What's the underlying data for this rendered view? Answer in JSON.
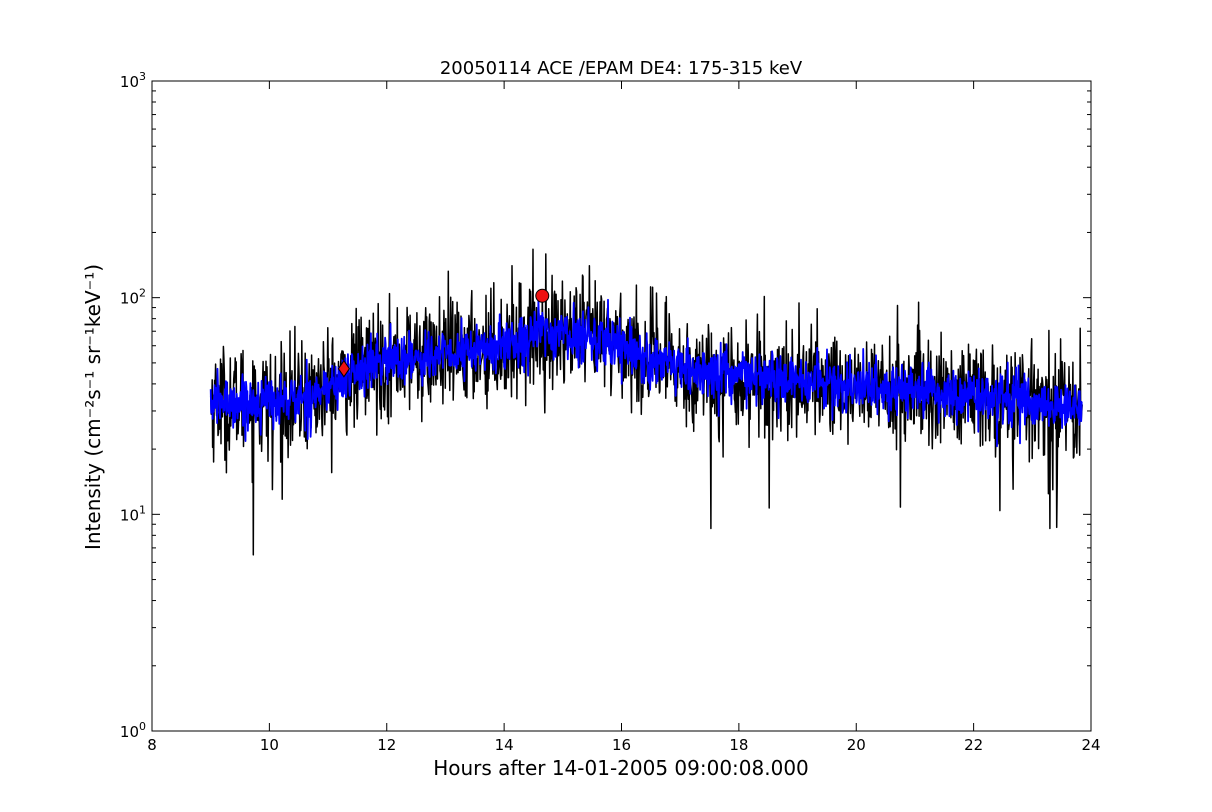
{
  "chart_data": {
    "type": "line",
    "title": "20050114 ACE /EPAM DE4: 175-315 keV",
    "xlabel": "Hours after 14-01-2005 09:00:08.000",
    "ylabel": "Intensity (cm⁻²s⁻¹ sr⁻¹keV⁻¹)",
    "xlim": [
      8,
      24
    ],
    "ylim": [
      1,
      1000
    ],
    "yscale": "log",
    "grid": false,
    "x_ticks": [
      "8",
      "10",
      "12",
      "14",
      "16",
      "18",
      "20",
      "22",
      "24"
    ],
    "y_ticks": [
      {
        "base": "10",
        "exp": "0"
      },
      {
        "base": "10",
        "exp": "1"
      },
      {
        "base": "10",
        "exp": "2"
      },
      {
        "base": "10",
        "exp": "3"
      }
    ],
    "series": [
      {
        "kind": "raw-intensity",
        "color": "#000000",
        "x_start": 9.0,
        "x_end": 23.85,
        "envelope": {
          "x": [
            9.0,
            10.0,
            10.5,
            11.0,
            11.5,
            12.0,
            13.0,
            14.0,
            14.6,
            15.0,
            16.0,
            16.5,
            17.0,
            18.0,
            19.0,
            20.0,
            21.0,
            22.0,
            23.0,
            23.85
          ],
          "y": [
            33,
            33,
            34,
            38,
            46,
            52,
            54,
            60,
            70,
            68,
            62,
            50,
            46,
            43,
            41,
            39,
            37,
            35,
            33,
            30
          ]
        },
        "noise_dex": 0.13,
        "dips": [
          {
            "x": 9.73,
            "y": 6.5
          },
          {
            "x": 17.52,
            "y": 8.6
          },
          {
            "x": 18.52,
            "y": 10.7
          },
          {
            "x": 20.75,
            "y": 10.8
          },
          {
            "x": 22.45,
            "y": 10.4
          },
          {
            "x": 23.3,
            "y": 8.6
          },
          {
            "x": 23.42,
            "y": 8.7
          },
          {
            "x": 10.05,
            "y": 13
          }
        ],
        "peaks": [
          {
            "x": 16.6,
            "y": 105
          },
          {
            "x": 20.7,
            "y": 92
          },
          {
            "x": 14.55,
            "y": 90
          },
          {
            "x": 16.75,
            "y": 95
          }
        ]
      },
      {
        "kind": "smoothed-intensity",
        "color": "#0000ff",
        "x_start": 9.0,
        "x_end": 23.85,
        "envelope": {
          "x": [
            9.0,
            10.0,
            10.5,
            11.0,
            11.5,
            12.0,
            13.0,
            14.0,
            14.6,
            15.0,
            16.0,
            16.5,
            17.0,
            18.0,
            19.0,
            20.0,
            21.0,
            22.0,
            23.0,
            23.85
          ],
          "y": [
            33,
            33,
            34,
            38,
            46,
            52,
            54,
            60,
            70,
            68,
            62,
            50,
            46,
            43,
            41,
            39,
            37,
            35,
            33,
            30
          ]
        },
        "noise_dex": 0.06
      }
    ],
    "markers": [
      {
        "kind": "circle",
        "x": 14.65,
        "y": 102,
        "color": "#ee1111"
      },
      {
        "kind": "diamond",
        "x": 11.27,
        "y": 47,
        "color": "#ee1111"
      }
    ]
  }
}
